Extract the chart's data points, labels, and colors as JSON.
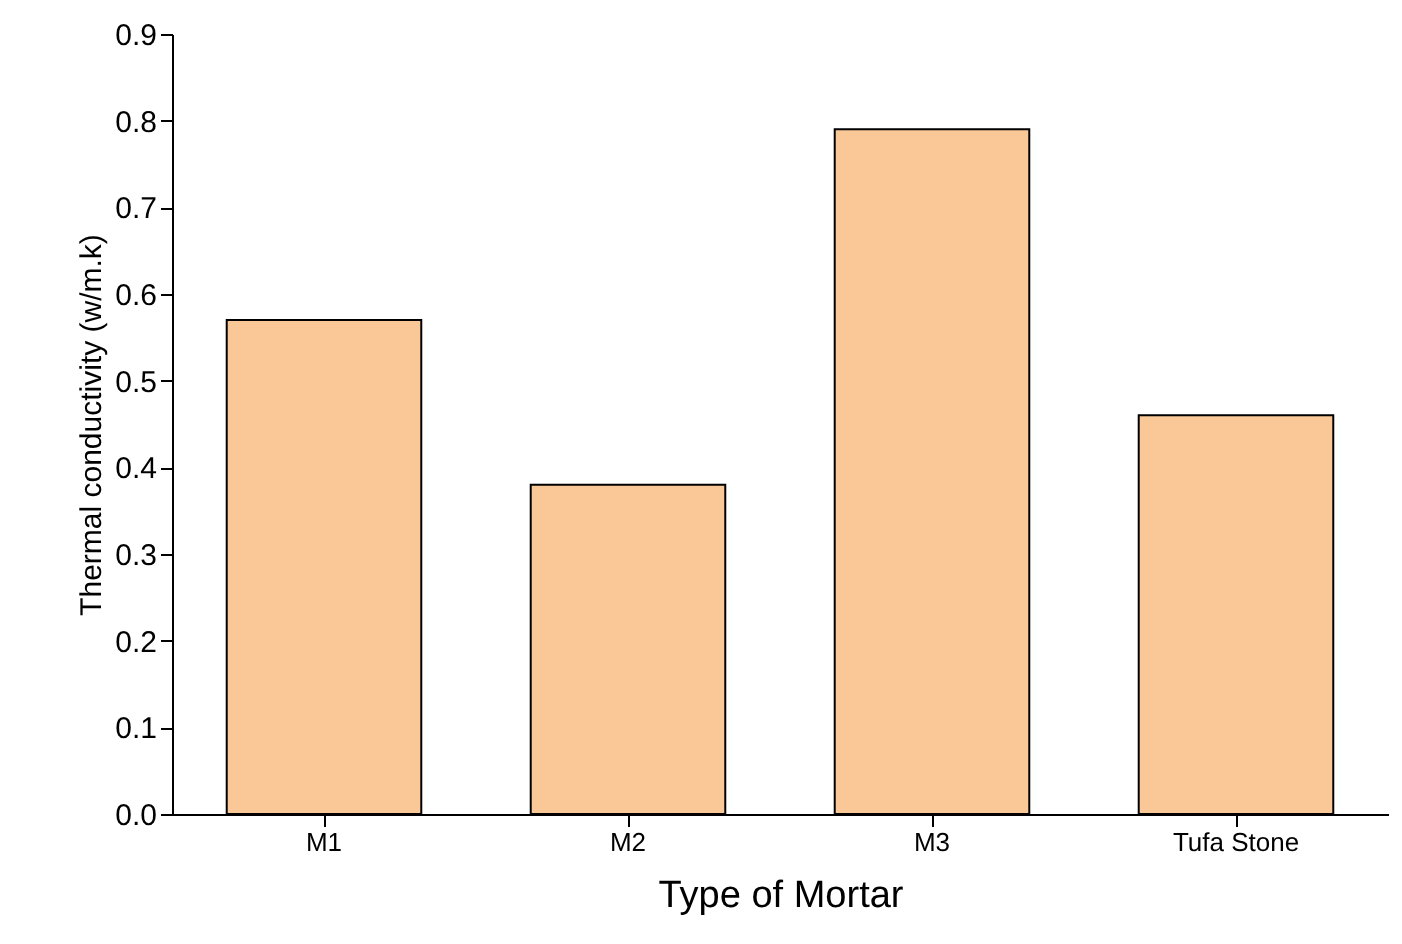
{
  "chart_data": {
    "type": "bar",
    "xlabel": "Type of Mortar",
    "ylabel": "Thermal conductivity (w/m.k)",
    "categories": [
      "M1",
      "M2",
      "M3",
      "Tufa Stone"
    ],
    "values": [
      0.57,
      0.38,
      0.79,
      0.46
    ],
    "color": "#f9c896",
    "ylim": [
      0,
      0.9
    ],
    "yticks": [
      {
        "value": 0,
        "label": "0.0"
      },
      {
        "value": 0.1,
        "label": "0.1"
      },
      {
        "value": 0.2,
        "label": "0.2"
      },
      {
        "value": 0.3,
        "label": "0.3"
      },
      {
        "value": 0.4,
        "label": "0.4"
      },
      {
        "value": 0.5,
        "label": "0.5"
      },
      {
        "value": 0.6,
        "label": "0.6"
      },
      {
        "value": 0.7,
        "label": "0.7"
      },
      {
        "value": 0.8,
        "label": "0.8"
      },
      {
        "value": 0.9,
        "label": "0.9"
      }
    ],
    "grid": false
  }
}
